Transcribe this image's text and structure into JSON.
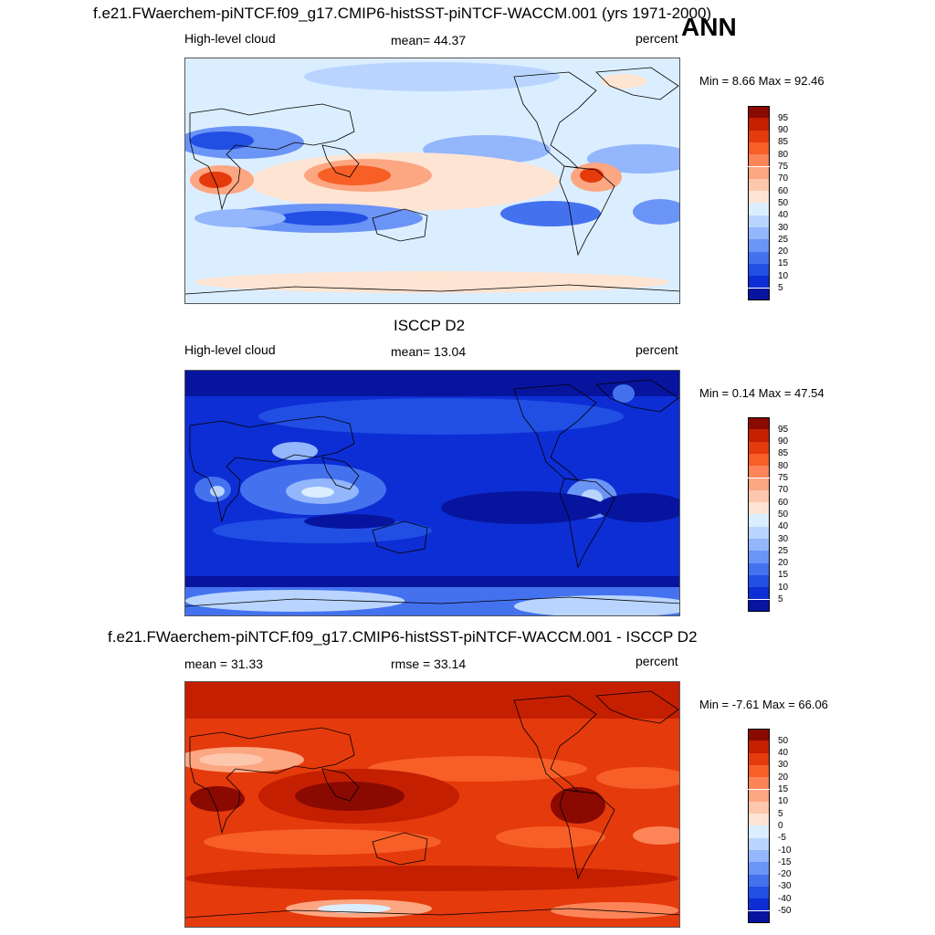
{
  "season": "ANN",
  "panels": [
    {
      "title": "f.e21.FWaerchem-piNTCF.f09_g17.CMIP6-histSST-piNTCF-WACCM.001 (yrs 1971-2000)",
      "left_label": "High-level cloud",
      "center_label": "mean=  44.37",
      "units": "percent",
      "minmax": "Min =   8.66 Max =  92.46",
      "colorbar_labels": [
        "95",
        "90",
        "85",
        "80",
        "75",
        "70",
        "60",
        "50",
        "40",
        "30",
        "25",
        "20",
        "15",
        "10",
        "5"
      ],
      "colors": [
        "#8a0a02",
        "#c51f02",
        "#e53a0c",
        "#f75f26",
        "#fc8458",
        "#fca682",
        "#fdc7ad",
        "#fee4d3",
        "#dbeeff",
        "#b9d5ff",
        "#93b6fc",
        "#6b94f7",
        "#4472ef",
        "#214fe4",
        "#0d2ed4",
        "#07159e"
      ]
    },
    {
      "title": "ISCCP D2",
      "left_label": "High-level cloud",
      "center_label": "mean=  13.04",
      "units": "percent",
      "minmax": "Min =   0.14 Max =  47.54",
      "colorbar_labels": [
        "95",
        "90",
        "85",
        "80",
        "75",
        "70",
        "60",
        "50",
        "40",
        "30",
        "25",
        "20",
        "15",
        "10",
        "5"
      ],
      "colors": [
        "#8a0a02",
        "#c51f02",
        "#e53a0c",
        "#f75f26",
        "#fc8458",
        "#fca682",
        "#fdc7ad",
        "#fee4d3",
        "#dbeeff",
        "#b9d5ff",
        "#93b6fc",
        "#6b94f7",
        "#4472ef",
        "#214fe4",
        "#0d2ed4",
        "#07159e"
      ]
    },
    {
      "title": "f.e21.FWaerchem-piNTCF.f09_g17.CMIP6-histSST-piNTCF-WACCM.001 - ISCCP D2",
      "left_label": "mean =  31.33",
      "center_label": "rmse =  33.14",
      "units": "percent",
      "minmax": "Min =  -7.61 Max =  66.06",
      "colorbar_labels": [
        "50",
        "40",
        "30",
        "20",
        "15",
        "10",
        "5",
        "0",
        "-5",
        "-10",
        "-15",
        "-20",
        "-30",
        "-40",
        "-50"
      ],
      "colors": [
        "#8a0a02",
        "#c51f02",
        "#e53a0c",
        "#f75f26",
        "#fc8458",
        "#fca682",
        "#fdc7ad",
        "#fee4d3",
        "#dbeeff",
        "#b9d5ff",
        "#93b6fc",
        "#6b94f7",
        "#4472ef",
        "#214fe4",
        "#0d2ed4",
        "#07159e"
      ]
    }
  ]
}
